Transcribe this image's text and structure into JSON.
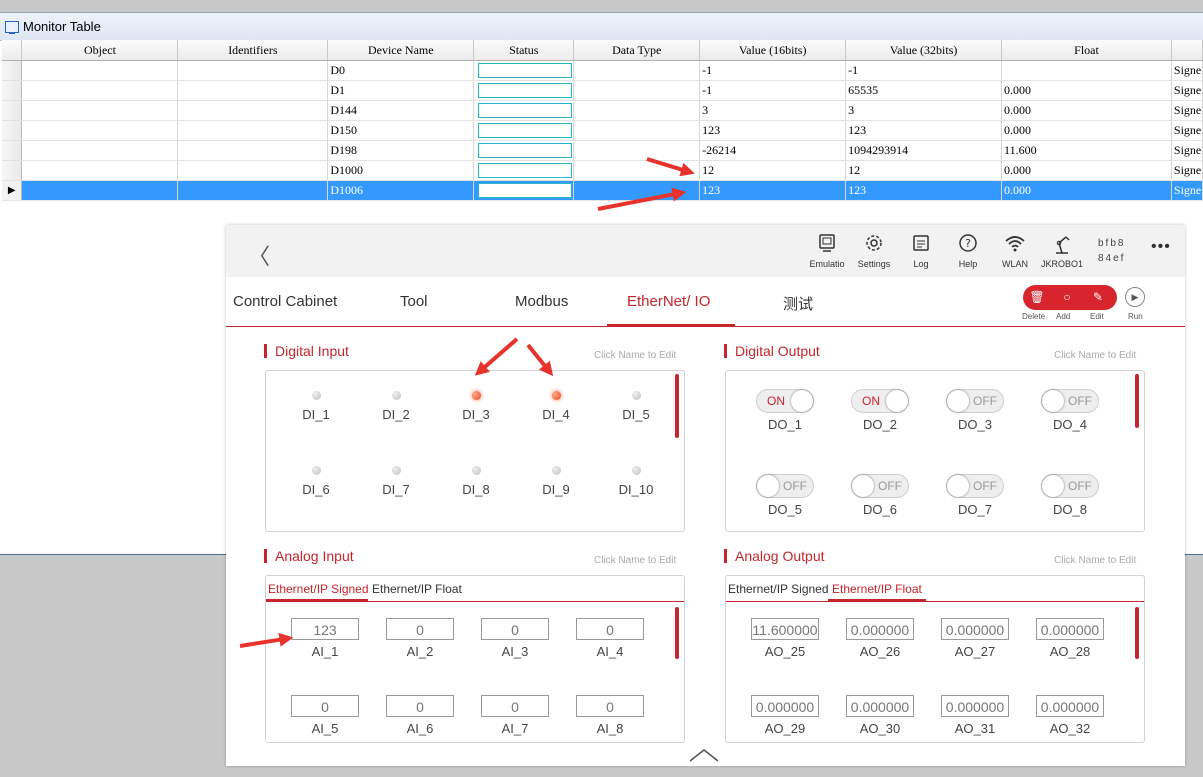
{
  "monitor": {
    "title": "Monitor Table",
    "columns": [
      "Object",
      "Identifiers",
      "Device Name",
      "Status",
      "Data Type",
      "Value (16bits)",
      "Value (32bits)",
      "Float",
      ""
    ],
    "rows": [
      {
        "device": "D0",
        "v16": "-1",
        "v32": "-1",
        "float": "",
        "extra": "Signe"
      },
      {
        "device": "D1",
        "v16": "-1",
        "v32": "65535",
        "float": "0.000",
        "extra": "Signe"
      },
      {
        "device": "D144",
        "v16": "3",
        "v32": "3",
        "float": "0.000",
        "extra": "Signe"
      },
      {
        "device": "D150",
        "v16": "123",
        "v32": "123",
        "float": "0.000",
        "extra": "Signe"
      },
      {
        "device": "D198",
        "v16": "-26214",
        "v32": "1094293914",
        "float": "11.600",
        "extra": "Signe"
      },
      {
        "device": "D1000",
        "v16": "12",
        "v32": "12",
        "float": "0.000",
        "extra": "Signe"
      },
      {
        "device": "D1006",
        "v16": "123",
        "v32": "123",
        "float": "0.000",
        "extra": "Signe"
      }
    ],
    "row_pointer": "▶"
  },
  "topbar": {
    "back": "〈",
    "items": [
      {
        "label": "Emulatio",
        "icon": "emulator-icon"
      },
      {
        "label": "Settings",
        "icon": "gear-icon"
      },
      {
        "label": "Log",
        "icon": "log-icon"
      },
      {
        "label": "Help",
        "icon": "help-icon"
      },
      {
        "label": "WLAN",
        "icon": "wifi-icon"
      },
      {
        "label": "JKROBO1",
        "icon": "robot-arm-icon"
      }
    ],
    "device_id_line1": "bfb8",
    "device_id_line2": "84ef",
    "more": "•••"
  },
  "tabs": [
    "Control Cabinet",
    "Tool",
    "Modbus",
    "EtherNet/ IO",
    "测试"
  ],
  "actions": {
    "delete": "Delete",
    "add": "Add",
    "edit": "Edit",
    "run": "Run"
  },
  "digital_input": {
    "title": "Digital Input",
    "hint": "Click Name to Edit",
    "items": [
      {
        "name": "DI_1",
        "on": false
      },
      {
        "name": "DI_2",
        "on": false
      },
      {
        "name": "DI_3",
        "on": true
      },
      {
        "name": "DI_4",
        "on": true
      },
      {
        "name": "DI_5",
        "on": false
      },
      {
        "name": "DI_6",
        "on": false
      },
      {
        "name": "DI_7",
        "on": false
      },
      {
        "name": "DI_8",
        "on": false
      },
      {
        "name": "DI_9",
        "on": false
      },
      {
        "name": "DI_10",
        "on": false
      }
    ]
  },
  "digital_output": {
    "title": "Digital Output",
    "hint": "Click Name to Edit",
    "items": [
      {
        "name": "DO_1",
        "state": "ON"
      },
      {
        "name": "DO_2",
        "state": "ON"
      },
      {
        "name": "DO_3",
        "state": "OFF"
      },
      {
        "name": "DO_4",
        "state": "OFF"
      },
      {
        "name": "DO_5",
        "state": "OFF"
      },
      {
        "name": "DO_6",
        "state": "OFF"
      },
      {
        "name": "DO_7",
        "state": "OFF"
      },
      {
        "name": "DO_8",
        "state": "OFF"
      }
    ]
  },
  "analog_input": {
    "title": "Analog Input",
    "hint": "Click Name to Edit",
    "subtabs": [
      "Ethernet/IP Signed",
      "Ethernet/IP Float"
    ],
    "items": [
      {
        "name": "AI_1",
        "value": "123"
      },
      {
        "name": "AI_2",
        "value": "0"
      },
      {
        "name": "AI_3",
        "value": "0"
      },
      {
        "name": "AI_4",
        "value": "0"
      },
      {
        "name": "AI_5",
        "value": "0"
      },
      {
        "name": "AI_6",
        "value": "0"
      },
      {
        "name": "AI_7",
        "value": "0"
      },
      {
        "name": "AI_8",
        "value": "0"
      }
    ]
  },
  "analog_output": {
    "title": "Analog Output",
    "hint": "Click Name to Edit",
    "subtabs": [
      "Ethernet/IP Signed",
      "Ethernet/IP Float"
    ],
    "items": [
      {
        "name": "AO_25",
        "value": "11.600000"
      },
      {
        "name": "AO_26",
        "value": "0.000000"
      },
      {
        "name": "AO_27",
        "value": "0.000000"
      },
      {
        "name": "AO_28",
        "value": "0.000000"
      },
      {
        "name": "AO_29",
        "value": "0.000000"
      },
      {
        "name": "AO_30",
        "value": "0.000000"
      },
      {
        "name": "AO_31",
        "value": "0.000000"
      },
      {
        "name": "AO_32",
        "value": "0.000000"
      }
    ]
  },
  "colors": {
    "accent": "#c7252d",
    "selection": "#3399ff",
    "annotation_arrow": "#e8322c"
  }
}
